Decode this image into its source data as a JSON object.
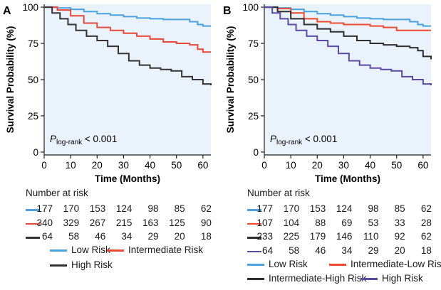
{
  "colors": {
    "low": "#4aa3df",
    "intermediate": "#e8483a",
    "high": "#333333",
    "intermediate_low": "#f04a2e",
    "intermediate_high": "#2e2e2e",
    "high_b": "#5a4aa3",
    "panel_bg": "#eaf2fb"
  },
  "chart_data": [
    {
      "type": "line",
      "panel_label": "A",
      "title": "",
      "xlabel": "Time (Months)",
      "ylabel": "Survival Probability (%)",
      "xlim": [
        0,
        63
      ],
      "ylim": [
        -2,
        102
      ],
      "x_ticks": [
        0,
        10,
        20,
        30,
        40,
        50,
        60
      ],
      "y_ticks": [
        0,
        25,
        50,
        75,
        100
      ],
      "annotation": {
        "p_main": "P",
        "p_sub": "log-rank",
        "p_rest": " < 0.001"
      },
      "series": [
        {
          "name": "Low Risk",
          "color_key": "low",
          "x": [
            0,
            5,
            10,
            15,
            20,
            25,
            30,
            35,
            40,
            45,
            50,
            55,
            58,
            60,
            63
          ],
          "y": [
            100,
            99.5,
            98.5,
            97,
            95.5,
            94.5,
            93.5,
            92.5,
            92,
            91.5,
            91.5,
            90,
            88,
            87,
            87
          ]
        },
        {
          "name": "Intermediate Risk",
          "color_key": "intermediate",
          "x": [
            0,
            5,
            10,
            15,
            20,
            25,
            30,
            35,
            40,
            45,
            50,
            55,
            58,
            60,
            63
          ],
          "y": [
            100,
            98,
            94,
            89,
            86,
            84,
            82,
            80,
            78,
            76,
            75,
            74,
            71,
            69,
            69
          ]
        },
        {
          "name": "High Risk",
          "color_key": "high",
          "x": [
            0,
            3,
            6,
            9,
            12,
            16,
            20,
            24,
            28,
            32,
            36,
            40,
            44,
            48,
            52,
            56,
            60,
            63
          ],
          "y": [
            100,
            96,
            92,
            88,
            84,
            80,
            77,
            73,
            68,
            63,
            60,
            58,
            57,
            56,
            52,
            50,
            47,
            46
          ]
        }
      ]
    },
    {
      "type": "line",
      "panel_label": "B",
      "title": "",
      "xlabel": "Time (Months)",
      "ylabel": "Survival Probability (%)",
      "xlim": [
        0,
        63
      ],
      "ylim": [
        -2,
        102
      ],
      "x_ticks": [
        0,
        10,
        20,
        30,
        40,
        50,
        60
      ],
      "y_ticks": [
        0,
        25,
        50,
        75,
        100
      ],
      "annotation": {
        "p_main": "P",
        "p_sub": "log-rank",
        "p_rest": " < 0.001"
      },
      "series": [
        {
          "name": "Low Risk",
          "color_key": "low",
          "x": [
            0,
            5,
            10,
            15,
            20,
            25,
            30,
            35,
            40,
            45,
            50,
            55,
            58,
            60,
            63
          ],
          "y": [
            100,
            99.5,
            98.5,
            97,
            95.5,
            94.5,
            93.5,
            92.5,
            92,
            91.5,
            91.5,
            90,
            88,
            87,
            87
          ]
        },
        {
          "name": "Intermediate-Low Risk",
          "color_key": "intermediate_low",
          "x": [
            0,
            5,
            10,
            15,
            20,
            25,
            30,
            35,
            40,
            45,
            50,
            55,
            60,
            63
          ],
          "y": [
            100,
            99,
            96,
            92,
            90,
            89,
            88,
            88,
            87,
            86,
            84,
            84,
            84,
            84
          ]
        },
        {
          "name": "Intermediate-High Risk",
          "color_key": "intermediate_high",
          "x": [
            0,
            5,
            10,
            15,
            20,
            25,
            30,
            35,
            40,
            45,
            50,
            55,
            58,
            60,
            63
          ],
          "y": [
            100,
            97,
            92,
            88,
            85,
            83,
            80,
            77,
            75,
            74,
            73,
            72,
            70,
            66,
            64
          ]
        },
        {
          "name": "High Risk",
          "color_key": "high_b",
          "x": [
            0,
            3,
            6,
            9,
            12,
            16,
            20,
            24,
            28,
            32,
            36,
            40,
            44,
            48,
            52,
            56,
            60,
            63
          ],
          "y": [
            100,
            96,
            92,
            88,
            84,
            80,
            77,
            73,
            68,
            63,
            60,
            58,
            57,
            56,
            52,
            50,
            47,
            46
          ]
        }
      ]
    }
  ],
  "risk_tables": [
    {
      "title": "Number at risk",
      "rows": [
        {
          "color_key": "low",
          "values": [
            "177",
            "170",
            "153",
            "124",
            "98",
            "85",
            "62"
          ]
        },
        {
          "color_key": "intermediate",
          "values": [
            "340",
            "329",
            "267",
            "215",
            "163",
            "125",
            "90"
          ]
        },
        {
          "color_key": "high",
          "values": [
            "64",
            "58",
            "46",
            "34",
            "29",
            "20",
            "18"
          ]
        }
      ],
      "legend": [
        {
          "label": "Low Risk",
          "color_key": "low"
        },
        {
          "label": "Intermediate Risk",
          "color_key": "intermediate"
        },
        {
          "label": "High Risk",
          "color_key": "high"
        }
      ]
    },
    {
      "title": "Number at risk",
      "rows": [
        {
          "color_key": "low",
          "values": [
            "177",
            "170",
            "153",
            "124",
            "98",
            "85",
            "62"
          ]
        },
        {
          "color_key": "intermediate_low",
          "values": [
            "107",
            "104",
            "88",
            "69",
            "53",
            "33",
            "28"
          ]
        },
        {
          "color_key": "intermediate_high",
          "values": [
            "233",
            "225",
            "179",
            "146",
            "110",
            "92",
            "62"
          ]
        },
        {
          "color_key": "high_b",
          "values": [
            "64",
            "58",
            "46",
            "34",
            "29",
            "20",
            "18"
          ]
        }
      ],
      "legend": [
        {
          "label": "Low Risk",
          "color_key": "low"
        },
        {
          "label": "Intermediate-Low Risk",
          "color_key": "intermediate_low"
        },
        {
          "label": "Intermediate-High Risk",
          "color_key": "intermediate_high"
        },
        {
          "label": "High Risk",
          "color_key": "high_b"
        }
      ]
    }
  ]
}
